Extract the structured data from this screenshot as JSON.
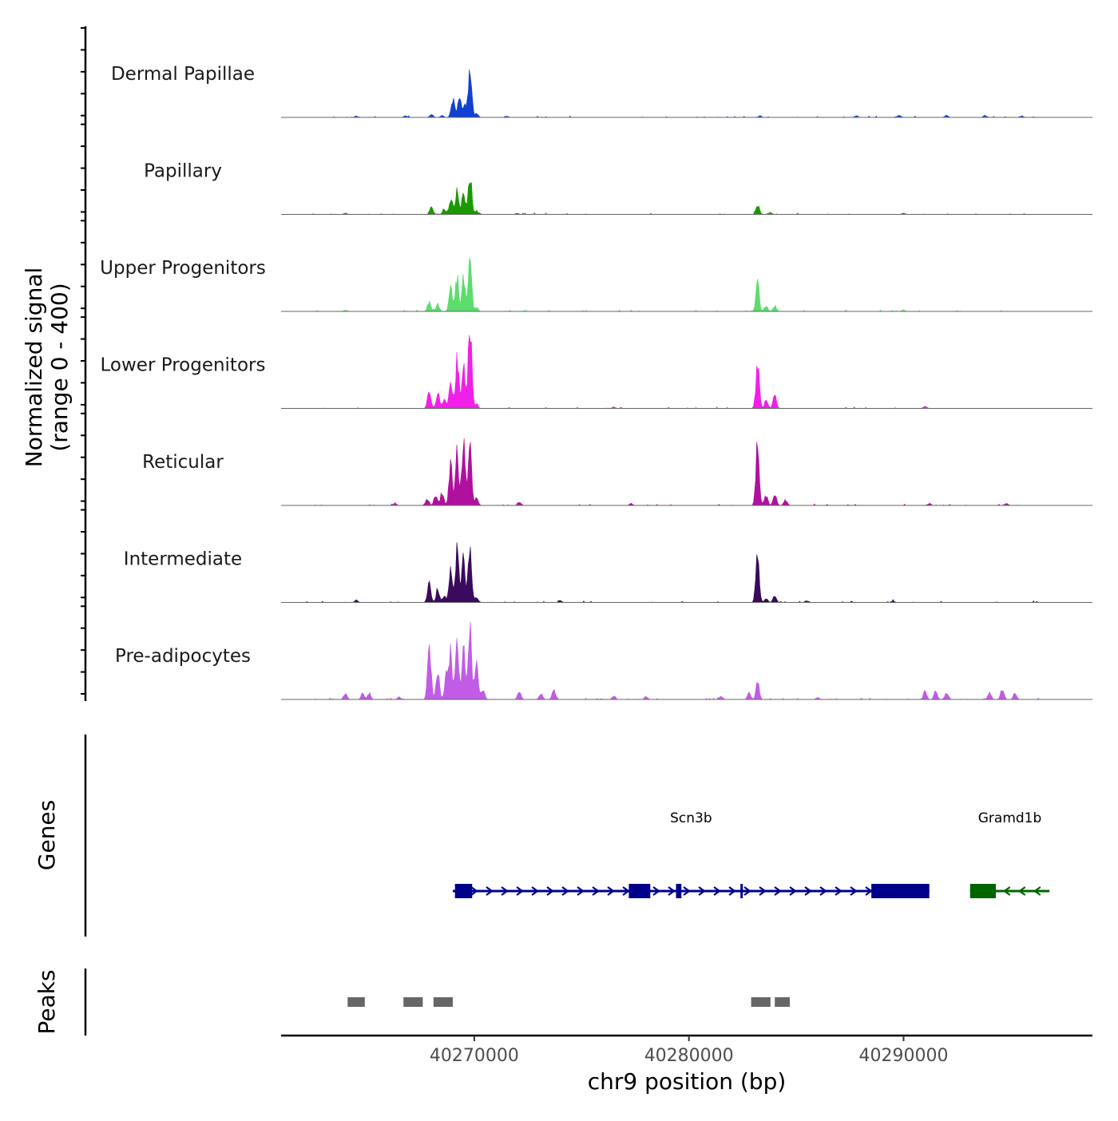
{
  "chart_data": {
    "type": "genome-coverage-track",
    "x": {
      "label": "chr9 position (bp)",
      "range": [
        40261000,
        40298800
      ],
      "ticks": [
        40270000,
        40280000,
        40290000
      ],
      "tick_labels": [
        "40270000",
        "40280000",
        "40290000"
      ]
    },
    "y": {
      "label_line1": "Normalized signal",
      "label_line2": "(range 0 - 400)",
      "range": [
        0,
        400
      ]
    },
    "tracks": [
      {
        "name": "Dermal Papillae",
        "color": "#1240d0",
        "peaks": [
          [
            40268000,
            12
          ],
          [
            40268500,
            8
          ],
          [
            40269000,
            80
          ],
          [
            40269300,
            95
          ],
          [
            40269550,
            60
          ],
          [
            40269800,
            230
          ],
          [
            40270100,
            15
          ],
          [
            40264500,
            6
          ],
          [
            40266800,
            7
          ],
          [
            40271500,
            6
          ],
          [
            40283300,
            7
          ],
          [
            40287800,
            8
          ],
          [
            40289800,
            10
          ],
          [
            40292000,
            9
          ],
          [
            40293800,
            8
          ],
          [
            40295500,
            6
          ]
        ]
      },
      {
        "name": "Papillary",
        "color": "#1a9900",
        "peaks": [
          [
            40268000,
            30
          ],
          [
            40268600,
            25
          ],
          [
            40268900,
            70
          ],
          [
            40269200,
            120
          ],
          [
            40269500,
            100
          ],
          [
            40269800,
            190
          ],
          [
            40270100,
            15
          ],
          [
            40264000,
            5
          ],
          [
            40272000,
            5
          ],
          [
            40283200,
            45
          ],
          [
            40283800,
            8
          ],
          [
            40290000,
            5
          ]
        ]
      },
      {
        "name": "Upper Progenitors",
        "color": "#5cdc6c",
        "peaks": [
          [
            40267900,
            45
          ],
          [
            40268300,
            30
          ],
          [
            40268900,
            95
          ],
          [
            40269200,
            150
          ],
          [
            40269500,
            140
          ],
          [
            40269800,
            240
          ],
          [
            40270100,
            15
          ],
          [
            40264000,
            5
          ],
          [
            40283200,
            120
          ],
          [
            40283600,
            20
          ],
          [
            40284000,
            25
          ],
          [
            40290000,
            6
          ]
        ]
      },
      {
        "name": "Lower Progenitors",
        "color": "#f020e8",
        "peaks": [
          [
            40267900,
            70
          ],
          [
            40268300,
            70
          ],
          [
            40268600,
            40
          ],
          [
            40268900,
            130
          ],
          [
            40269200,
            220
          ],
          [
            40269500,
            200
          ],
          [
            40269800,
            390
          ],
          [
            40270100,
            20
          ],
          [
            40283200,
            200
          ],
          [
            40283600,
            40
          ],
          [
            40284000,
            70
          ],
          [
            40291000,
            10
          ],
          [
            40276500,
            6
          ]
        ]
      },
      {
        "name": "Reticular",
        "color": "#b0109e",
        "peaks": [
          [
            40267800,
            30
          ],
          [
            40268200,
            50
          ],
          [
            40268500,
            60
          ],
          [
            40268900,
            200
          ],
          [
            40269200,
            230
          ],
          [
            40269500,
            280
          ],
          [
            40269800,
            310
          ],
          [
            40270100,
            30
          ],
          [
            40272100,
            18
          ],
          [
            40266300,
            8
          ],
          [
            40283200,
            270
          ],
          [
            40283600,
            45
          ],
          [
            40284000,
            50
          ],
          [
            40284500,
            25
          ],
          [
            40291200,
            8
          ],
          [
            40294800,
            8
          ],
          [
            40277300,
            8
          ]
        ]
      },
      {
        "name": "Intermediate",
        "color": "#3a0a5c",
        "peaks": [
          [
            40267900,
            85
          ],
          [
            40268300,
            60
          ],
          [
            40268600,
            30
          ],
          [
            40268900,
            150
          ],
          [
            40269200,
            220
          ],
          [
            40269500,
            190
          ],
          [
            40269800,
            260
          ],
          [
            40270100,
            25
          ],
          [
            40264500,
            10
          ],
          [
            40283200,
            230
          ],
          [
            40283600,
            15
          ],
          [
            40284000,
            30
          ],
          [
            40285500,
            8
          ],
          [
            40274000,
            8
          ],
          [
            40289500,
            7
          ]
        ]
      },
      {
        "name": "Pre-adipocytes",
        "color": "#c15ce6",
        "peaks": [
          [
            40264000,
            30
          ],
          [
            40264800,
            25
          ],
          [
            40265100,
            30
          ],
          [
            40266500,
            10
          ],
          [
            40267900,
            250
          ],
          [
            40268300,
            140
          ],
          [
            40268700,
            100
          ],
          [
            40268900,
            200
          ],
          [
            40269200,
            260
          ],
          [
            40269500,
            240
          ],
          [
            40269800,
            320
          ],
          [
            40270100,
            160
          ],
          [
            40270400,
            50
          ],
          [
            40272100,
            35
          ],
          [
            40273100,
            25
          ],
          [
            40273700,
            45
          ],
          [
            40276500,
            15
          ],
          [
            40278000,
            12
          ],
          [
            40281500,
            15
          ],
          [
            40282800,
            30
          ],
          [
            40283200,
            75
          ],
          [
            40286000,
            10
          ],
          [
            40291000,
            35
          ],
          [
            40291500,
            35
          ],
          [
            40292000,
            30
          ],
          [
            40294000,
            30
          ],
          [
            40294600,
            45
          ],
          [
            40295200,
            30
          ],
          [
            40296400,
            15
          ]
        ]
      }
    ],
    "genes": [
      {
        "name": "Scn3b",
        "strand": "+",
        "color": "#00008b",
        "start": 40269000,
        "end": 40291200,
        "exons": [
          [
            40269100,
            40269900
          ],
          [
            40277200,
            40278200
          ],
          [
            40279400,
            40279650
          ],
          [
            40282400,
            40282500
          ],
          [
            40288500,
            40291200
          ]
        ]
      },
      {
        "name": "Gramd1b",
        "strand": "-",
        "color": "#006400",
        "start": 40293100,
        "end": 40296800,
        "exons": [
          [
            40293100,
            40294300
          ]
        ]
      }
    ],
    "peaks": [
      [
        40264100,
        40264900
      ],
      [
        40266700,
        40267600
      ],
      [
        40268100,
        40269000
      ],
      [
        40282900,
        40283800
      ],
      [
        40284000,
        40284700
      ]
    ],
    "track_group_labels": [
      "Genes",
      "Peaks"
    ]
  }
}
